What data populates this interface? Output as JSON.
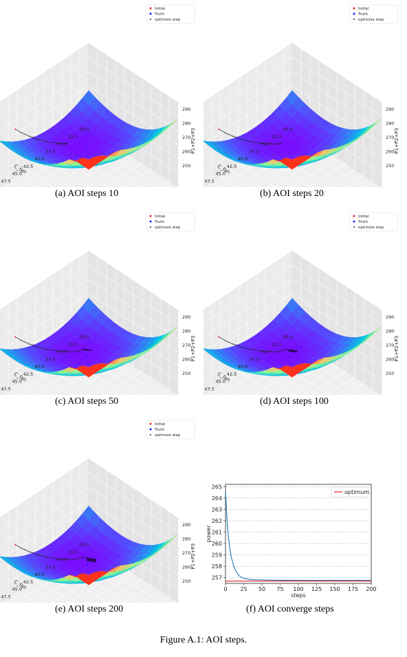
{
  "figure_caption": "Figure A.1: AOI steps.",
  "surface_panels": [
    {
      "caption": "(a) AOI steps 10"
    },
    {
      "caption": "(b) AOI steps 20"
    },
    {
      "caption": "(c) AOI steps 50"
    },
    {
      "caption": "(d) AOI steps 100"
    },
    {
      "caption": "(e) AOI steps 200"
    }
  ],
  "converge_panel": {
    "caption": "(f) AOI converge steps"
  },
  "colors": {
    "initial": "#ff2020",
    "truth": "#1a1aff",
    "optimize_step": "#222222",
    "optimum_line": "#e02020",
    "convergence_curve": "#1f77b4"
  },
  "chart_data": [
    {
      "type": "surface3d",
      "legend": [
        "Initial",
        "Truth",
        "optimize step"
      ],
      "xlabel": "C_fan",
      "ylabel": "C_low_pump",
      "zlabel": "P1+P2+P3",
      "x_ticks": [
        "30.0",
        "32.5",
        "35.0",
        "37.5",
        "40.0",
        "42.5",
        "45.0",
        "47.5",
        "50.0"
      ],
      "y_ticks": [
        "30.0",
        "32.5",
        "35.0",
        "37.5",
        "40.0",
        "42.5",
        "45.0",
        "47.5",
        "50.0"
      ],
      "z_ticks": [
        "250",
        "260",
        "270",
        "280",
        "290"
      ],
      "steps_shown": [
        10,
        20,
        50,
        100,
        200
      ]
    },
    {
      "type": "line",
      "xlabel": "steps",
      "ylabel": "power",
      "x_ticks": [
        "0",
        "25",
        "50",
        "75",
        "100",
        "125",
        "150",
        "175",
        "200"
      ],
      "y_ticks": [
        "257",
        "258",
        "259",
        "260",
        "261",
        "262",
        "263",
        "264",
        "265"
      ],
      "xlim": [
        0,
        200
      ],
      "ylim": [
        256.5,
        265.2
      ],
      "grid": true,
      "legend_position": "top-right",
      "optimum": 256.7,
      "series": [
        {
          "name": "optimum",
          "x": [
            0,
            200
          ],
          "y": [
            256.7,
            256.7
          ]
        },
        {
          "x": [
            0,
            1,
            2,
            3,
            4,
            5,
            6,
            8,
            10,
            12,
            14,
            16,
            18,
            20,
            25,
            30,
            35,
            40,
            50,
            60,
            80,
            100,
            150,
            200
          ],
          "y": [
            264.7,
            263.3,
            262.2,
            261.3,
            260.6,
            260.0,
            259.5,
            258.8,
            258.3,
            257.9,
            257.6,
            257.4,
            257.25,
            257.1,
            256.95,
            256.88,
            256.84,
            256.82,
            256.8,
            256.79,
            256.78,
            256.77,
            256.77,
            256.77
          ]
        }
      ]
    }
  ]
}
